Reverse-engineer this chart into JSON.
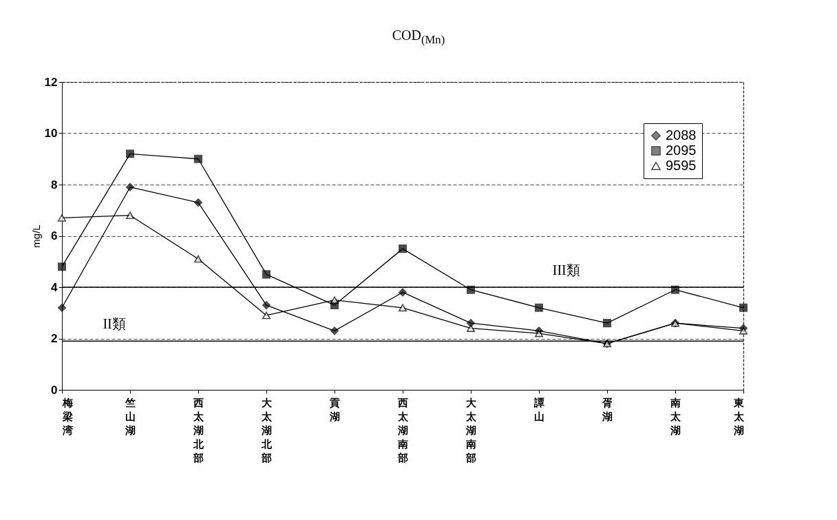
{
  "chart_data": {
    "type": "line",
    "title": "COD$_{(Mn)}$",
    "ylabel": "mg/L",
    "categories": [
      "梅梁湾",
      "竺山湖",
      "西太湖北部",
      "大太湖北部",
      "貢湖",
      "西太湖南部",
      "大太湖南部",
      "譚山",
      "胥湖",
      "南太湖",
      "東太湖"
    ],
    "series": [
      {
        "name": "2088",
        "color": "#000000",
        "marker": "diamond",
        "values": [
          3.2,
          7.9,
          7.3,
          3.3,
          2.3,
          3.8,
          2.6,
          2.3,
          1.8,
          2.6,
          2.4
        ]
      },
      {
        "name": "2095",
        "color": "#000000",
        "marker": "square",
        "values": [
          4.8,
          9.2,
          9.0,
          4.5,
          3.3,
          5.5,
          3.9,
          3.2,
          2.6,
          3.9,
          3.2
        ]
      },
      {
        "name": "9595",
        "color": "#000000",
        "marker": "triangle",
        "values": [
          6.7,
          6.8,
          5.1,
          2.9,
          3.5,
          3.2,
          2.4,
          2.2,
          1.8,
          2.6,
          2.3
        ]
      }
    ],
    "ylim": [
      0,
      12
    ],
    "yticks": [
      0,
      2,
      4,
      6,
      8,
      10,
      12
    ],
    "grid": "y",
    "legend": "top right",
    "ref_lines": [
      {
        "axis": "y",
        "value": 4,
        "label": "III類",
        "color": "#000000"
      },
      {
        "axis": "y",
        "value": 1.9,
        "label": "II類",
        "color": "#000000"
      }
    ]
  }
}
